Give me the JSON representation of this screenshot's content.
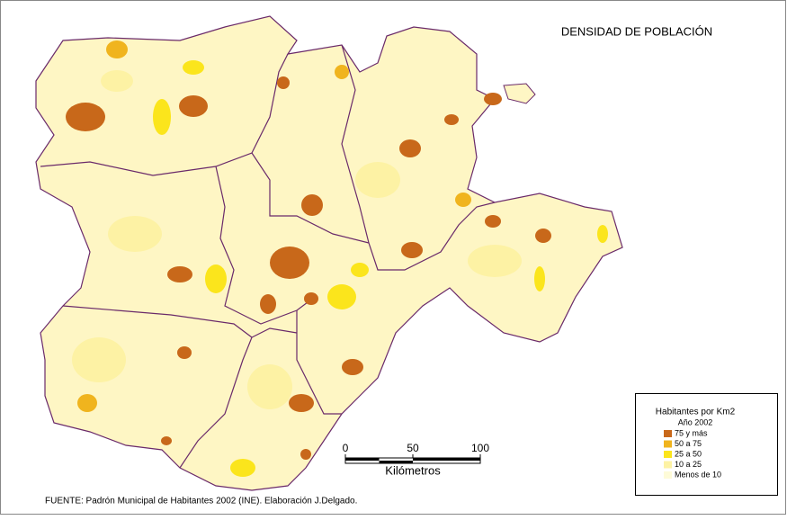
{
  "title": "DENSIDAD DE POBLACIÓN",
  "legend": {
    "title": "Habitantes por Km2",
    "subtitle": "Año 2002",
    "items": [
      {
        "label": "75 y más",
        "color": "#c8681a"
      },
      {
        "label": "50 a 75",
        "color": "#f0b41e"
      },
      {
        "label": "25 a 50",
        "color": "#fbe51c"
      },
      {
        "label": "10 a 25",
        "color": "#fdf2a4"
      },
      {
        "label": "Menos de 10",
        "color": "#fefbd8"
      }
    ]
  },
  "scale": {
    "ticks": [
      0,
      50,
      100
    ],
    "unit": "Kilómetros"
  },
  "source": "FUENTE: Padrón Municipal de Habitantes 2002 (INE). Elaboración J.Delgado."
}
